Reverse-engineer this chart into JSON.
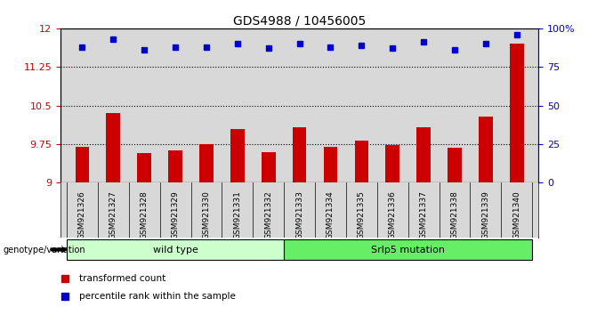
{
  "title": "GDS4988 / 10456005",
  "samples": [
    "GSM921326",
    "GSM921327",
    "GSM921328",
    "GSM921329",
    "GSM921330",
    "GSM921331",
    "GSM921332",
    "GSM921333",
    "GSM921334",
    "GSM921335",
    "GSM921336",
    "GSM921337",
    "GSM921338",
    "GSM921339",
    "GSM921340"
  ],
  "bar_values": [
    9.7,
    10.35,
    9.58,
    9.63,
    9.75,
    10.05,
    9.6,
    10.08,
    9.7,
    9.82,
    9.73,
    10.08,
    9.68,
    10.28,
    11.7
  ],
  "percentile_values": [
    88,
    93,
    86,
    88,
    88,
    90,
    87,
    90,
    88,
    89,
    87,
    91,
    86,
    90,
    96
  ],
  "bar_color": "#cc0000",
  "dot_color": "#0000cc",
  "ylim_left": [
    9.0,
    12.0
  ],
  "ylim_right": [
    0,
    100
  ],
  "yticks_left": [
    9.0,
    9.75,
    10.5,
    11.25,
    12.0
  ],
  "ytick_labels_left": [
    "9",
    "9.75",
    "10.5",
    "11.25",
    "12"
  ],
  "yticks_right": [
    0,
    25,
    50,
    75,
    100
  ],
  "ytick_labels_right": [
    "0",
    "25",
    "50",
    "75",
    "100%"
  ],
  "hlines": [
    9.75,
    10.5,
    11.25
  ],
  "wt_count": 7,
  "mut_count": 8,
  "wild_type_label": "wild type",
  "mutation_label": "Srlp5 mutation",
  "wild_type_color": "#ccffcc",
  "mutation_color": "#66ee66",
  "genotype_label": "genotype/variation",
  "legend_bar_label": "transformed count",
  "legend_dot_label": "percentile rank within the sample",
  "plot_bg_color": "#d8d8d8",
  "xtick_bg_color": "#d8d8d8",
  "title_fontsize": 10,
  "bar_width": 0.45
}
